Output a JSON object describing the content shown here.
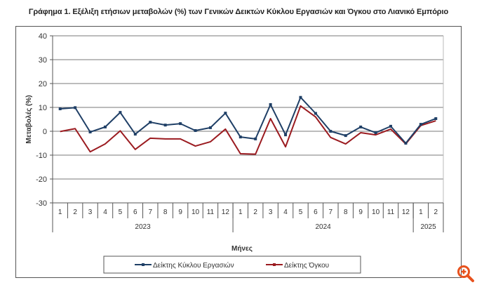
{
  "title": "Γράφημα 1. Εξέλιξη ετήσιων μεταβολών (%) των Γενικών Δεικτών Κύκλου Εργασιών και Όγκου στο Λιανικό Εμπόριο",
  "zoom_icon": "zoom-in-icon",
  "colors": {
    "turnover": "#1f3f66",
    "volume": "#9b1b20",
    "grid": "#666666",
    "accent": "#e8521e"
  },
  "chart_data": {
    "type": "line",
    "title": "Γράφημα 1. Εξέλιξη ετήσιων μεταβολών (%) των Γενικών Δεικτών Κύκλου Εργασιών και Όγκου στο Λιανικό Εμπόριο",
    "xlabel": "Μήνες",
    "ylabel": "Μεταβολές  (%)",
    "ylim": [
      -30,
      40
    ],
    "yticks": [
      40,
      30,
      20,
      10,
      0,
      -10,
      -20,
      -30
    ],
    "grid": true,
    "legend_position": "bottom",
    "year_groups": [
      {
        "label": "2023",
        "months": 12
      },
      {
        "label": "2024",
        "months": 12
      },
      {
        "label": "2025",
        "months": 2
      }
    ],
    "categories": [
      "1",
      "2",
      "3",
      "4",
      "5",
      "6",
      "7",
      "8",
      "9",
      "10",
      "11",
      "12",
      "1",
      "2",
      "3",
      "4",
      "5",
      "6",
      "7",
      "8",
      "9",
      "10",
      "11",
      "12",
      "1",
      "2"
    ],
    "series": [
      {
        "name": "Δείκτης Κύκλου Εργασιών",
        "color": "#1f3f66",
        "values": [
          9.4,
          9.9,
          -0.3,
          1.8,
          7.9,
          -1.2,
          3.8,
          2.6,
          3.2,
          0.3,
          1.5,
          7.6,
          -2.4,
          -3.2,
          11.2,
          -1.5,
          14.2,
          7.5,
          0.0,
          -1.8,
          1.8,
          -0.6,
          2.1,
          -5.0,
          2.9,
          5.3
        ]
      },
      {
        "name": "Δείκτης Όγκου",
        "color": "#9b1b20",
        "values": [
          -0.1,
          1.1,
          -8.6,
          -5.3,
          0.2,
          -7.6,
          -2.9,
          -3.2,
          -3.2,
          -6.2,
          -4.4,
          0.9,
          -9.4,
          -9.6,
          5.3,
          -6.5,
          10.6,
          6.0,
          -2.6,
          -5.3,
          -0.6,
          -1.5,
          0.9,
          -5.3,
          2.4,
          4.4
        ]
      }
    ]
  }
}
